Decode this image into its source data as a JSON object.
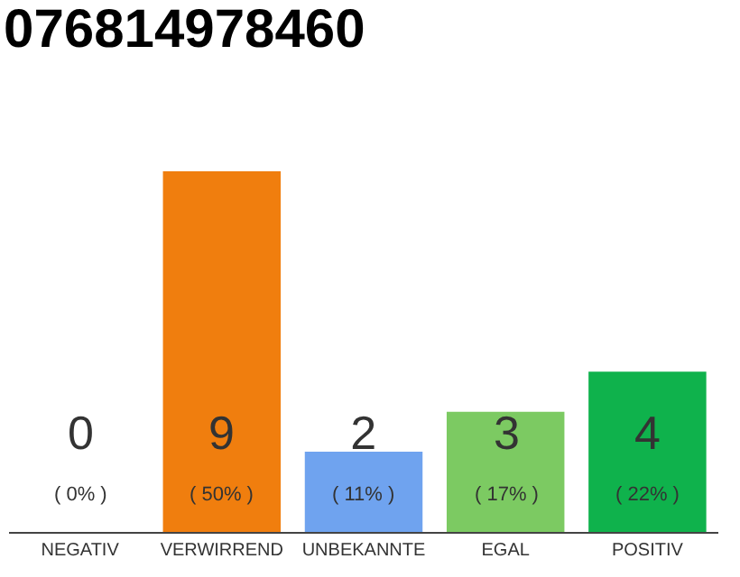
{
  "chart_data": {
    "type": "bar",
    "title": "076814978460",
    "categories": [
      "NEGATIV",
      "VERWIRREND",
      "UNBEKANNTE",
      "EGAL",
      "POSITIV"
    ],
    "values": [
      0,
      9,
      2,
      3,
      4
    ],
    "colors": [
      "#cfcfcf",
      "#f07e0e",
      "#6fa3ef",
      "#7cca62",
      "#0fb24c"
    ],
    "value_labels": [
      "0\n( 0% )",
      "9\n( 50% )",
      "2\n( 11% )",
      "3\n( 17% )",
      "4\n( 22% )"
    ],
    "ylim": [
      0,
      9
    ],
    "tick_labels": "x",
    "legend": false
  }
}
